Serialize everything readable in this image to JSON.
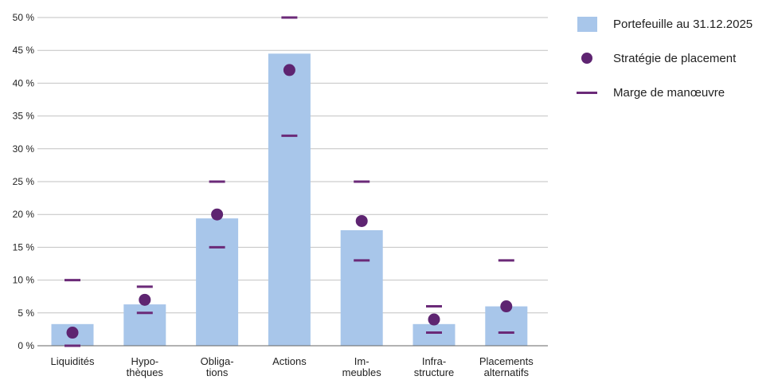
{
  "chart_data": {
    "type": "bar",
    "categories": [
      [
        "Liquidités"
      ],
      [
        "Hypo-",
        "thèques"
      ],
      [
        "Obliga-",
        "tions"
      ],
      [
        "Actions"
      ],
      [
        "Im-",
        "meubles"
      ],
      [
        "Infra-",
        "structure"
      ],
      [
        "Placements",
        "alternatifs"
      ]
    ],
    "ylim": [
      0,
      50
    ],
    "yticks": [
      0,
      5,
      10,
      15,
      20,
      25,
      30,
      35,
      40,
      45,
      50
    ],
    "ytick_suffix": " %",
    "grid": true,
    "series": [
      {
        "name": "Portefeuille au 31.12.2025",
        "kind": "bar",
        "values": [
          3.3,
          6.3,
          19.4,
          44.5,
          17.6,
          3.3,
          6.0
        ]
      },
      {
        "name": "Stratégie de placement",
        "kind": "dot",
        "values": [
          2,
          7,
          20,
          42,
          19,
          4,
          6
        ]
      },
      {
        "name": "Marge de manœuvre",
        "kind": "range",
        "min": [
          0,
          5,
          15,
          32,
          13,
          2,
          2
        ],
        "max": [
          10,
          9,
          25,
          50,
          25,
          6,
          13
        ]
      }
    ],
    "colors": {
      "bar": "#a8c6ea",
      "dot": "#5e2471",
      "range": "#6b2a78",
      "grid": "#c2c2c2",
      "axis": "#666666"
    },
    "legend_position": "top-right"
  },
  "legend": {
    "items": [
      {
        "label": "Portefeuille au 31.12.2025",
        "icon": "bar-swatch-icon"
      },
      {
        "label": "Stratégie de placement",
        "icon": "dot-marker-icon"
      },
      {
        "label": "Marge de manœuvre",
        "icon": "dash-marker-icon"
      }
    ]
  }
}
